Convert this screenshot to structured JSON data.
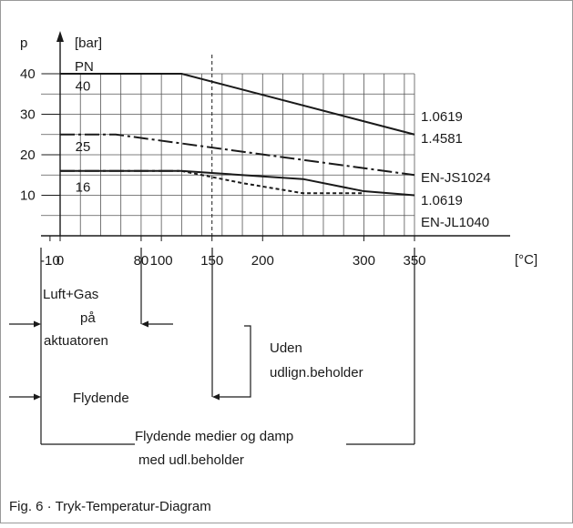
{
  "caption": "Fig. 6 · Tryk-Temperatur-Diagram",
  "chart_data": {
    "type": "line",
    "xlabel": "",
    "ylabel": "p",
    "x_unit": "[°C]",
    "y_unit": "[bar]",
    "xlim": [
      -10,
      350
    ],
    "ylim": [
      0,
      45
    ],
    "grid": true,
    "x_ticks": [
      -10,
      0,
      80,
      100,
      150,
      200,
      300,
      350
    ],
    "x_tick_labels": [
      "-10",
      "0",
      "80",
      "100",
      "150",
      "200",
      "300",
      "350"
    ],
    "y_ticks": [
      10,
      20,
      30,
      40
    ],
    "y_tick_labels": [
      "10",
      "20",
      "30",
      "40"
    ],
    "pn_label": "PN",
    "series": [
      {
        "key": "pn40",
        "name": "1.0619",
        "style": "solid",
        "x": [
          0,
          120,
          350
        ],
        "y": [
          40,
          40,
          25
        ]
      },
      {
        "key": "pn25",
        "name": "EN-JS1024",
        "style": "dashdot",
        "x": [
          0,
          55,
          350
        ],
        "y": [
          25,
          25,
          15
        ]
      },
      {
        "key": "pn16a",
        "name": "1.0619",
        "style": "solid",
        "x": [
          0,
          120,
          240,
          300,
          350
        ],
        "y": [
          16,
          16,
          14,
          11,
          10
        ]
      },
      {
        "key": "pn16b",
        "name": "EN-JL1040",
        "style": "dashdot",
        "x": [
          0,
          120
        ],
        "y": [
          16,
          16
        ]
      },
      {
        "key": "pn16c",
        "name": "",
        "style": "dashed",
        "x": [
          120,
          180,
          240,
          300
        ],
        "y": [
          16,
          13,
          10.5,
          10.5
        ]
      }
    ],
    "pn_values": [
      {
        "label": "40",
        "x": 15,
        "y": 37
      },
      {
        "label": "25",
        "x": 15,
        "y": 22
      },
      {
        "label": "16",
        "x": 15,
        "y": 12
      }
    ],
    "right_labels": [
      "1.0619",
      "1.4581",
      "EN-JS1024",
      "1.0619",
      "EN-JL1040"
    ],
    "ref_line_x": 150,
    "annotations": {
      "luft_gas": "Luft+Gas",
      "paa": "på",
      "aktuatoren": "aktuatoren",
      "uden": "Uden",
      "udlign": "udlign.beholder",
      "flydende": "Flydende",
      "flydende_medier": "Flydende medier og damp",
      "med_udl": "med udl.beholder"
    }
  }
}
